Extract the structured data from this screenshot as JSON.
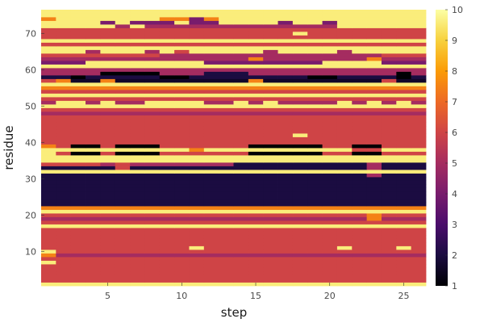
{
  "chart_data": {
    "type": "heatmap",
    "xlabel": "step",
    "ylabel": "residue",
    "x_ticks": [
      5,
      10,
      15,
      20,
      25
    ],
    "y_ticks": [
      10,
      20,
      30,
      40,
      50,
      60,
      70
    ],
    "xlim": [
      0.5,
      26.5
    ],
    "ylim": [
      0.5,
      76.5
    ],
    "colorbar": {
      "min": 1,
      "max": 10,
      "ticks": [
        1,
        2,
        3,
        4,
        5,
        6,
        7,
        8,
        9,
        10
      ],
      "colormap": "inferno",
      "stops": [
        "#000004",
        "#1b0c41",
        "#4a0c6b",
        "#781c6d",
        "#a52c60",
        "#cf4446",
        "#ed6925",
        "#fb9b06",
        "#f7d13d",
        "#fcffa4"
      ]
    },
    "grid": false,
    "steps": 26,
    "default_row_value": 6,
    "rows": [
      {
        "y": 1,
        "v": 9.6
      },
      {
        "y": 2,
        "v": 6
      },
      {
        "y": 3,
        "v": 6
      },
      {
        "y": 4,
        "v": 6
      },
      {
        "y": 5,
        "v": 6
      },
      {
        "y": 6,
        "v": 6
      },
      {
        "y": 7,
        "v": 6,
        "o": [
          [
            1,
            9.6
          ]
        ]
      },
      {
        "y": 8,
        "v": 6
      },
      {
        "y": 9,
        "v": 5,
        "o": [
          [
            1,
            7.5
          ]
        ]
      },
      {
        "y": 10,
        "v": 6,
        "o": [
          [
            1,
            9.6
          ]
        ]
      },
      {
        "y": 11,
        "v": 6,
        "o": [
          [
            11,
            9.6
          ],
          [
            21,
            9.6
          ],
          [
            25,
            9.6
          ]
        ]
      },
      {
        "y": 12,
        "v": 6
      },
      {
        "y": 13,
        "v": 6
      },
      {
        "y": 14,
        "v": 6
      },
      {
        "y": 15,
        "v": 6
      },
      {
        "y": 16,
        "v": 6
      },
      {
        "y": 17,
        "v": 9.6
      },
      {
        "y": 18,
        "v": 6
      },
      {
        "y": 19,
        "v": 5,
        "o": [
          [
            23,
            7.5
          ]
        ]
      },
      {
        "y": 20,
        "v": 6,
        "o": [
          [
            23,
            7.5
          ]
        ]
      },
      {
        "y": 21,
        "v": 9.6
      },
      {
        "y": 22,
        "v": 7.5
      },
      {
        "y": 23,
        "v": 2
      },
      {
        "y": 24,
        "v": 2
      },
      {
        "y": 25,
        "v": 2
      },
      {
        "y": 26,
        "v": 2
      },
      {
        "y": 27,
        "v": 2
      },
      {
        "y": 28,
        "v": 2
      },
      {
        "y": 29,
        "v": 2
      },
      {
        "y": 30,
        "v": 2
      },
      {
        "y": 31,
        "v": 2,
        "o": [
          [
            23,
            5
          ]
        ]
      },
      {
        "y": 32,
        "v": 9.6
      },
      {
        "y": 33,
        "v": 2,
        "o": [
          [
            6,
            6
          ],
          [
            23,
            5
          ]
        ]
      },
      {
        "y": 34,
        "v": 2,
        "o": [
          [
            1,
            6
          ],
          [
            2,
            6
          ],
          [
            3,
            6
          ],
          [
            4,
            6
          ],
          [
            5,
            5
          ],
          [
            6,
            6
          ],
          [
            7,
            5
          ],
          [
            8,
            5
          ],
          [
            9,
            5
          ],
          [
            10,
            5
          ],
          [
            11,
            5
          ],
          [
            12,
            5
          ],
          [
            13,
            5
          ],
          [
            23,
            5
          ]
        ]
      },
      {
        "y": 35,
        "v": 9.6
      },
      {
        "y": 36,
        "v": 9.6
      },
      {
        "y": 37,
        "v": 6,
        "o": [
          [
            1,
            9.6
          ],
          [
            3,
            1
          ],
          [
            4,
            1
          ],
          [
            6,
            1
          ],
          [
            7,
            1
          ],
          [
            8,
            1
          ],
          [
            15,
            1
          ],
          [
            16,
            1
          ],
          [
            17,
            1
          ],
          [
            18,
            1
          ],
          [
            19,
            1
          ],
          [
            22,
            1
          ],
          [
            23,
            1
          ]
        ]
      },
      {
        "y": 38,
        "v": 9.6,
        "o": [
          [
            11,
            7.5
          ],
          [
            22,
            6
          ],
          [
            23,
            6
          ]
        ]
      },
      {
        "y": 39,
        "v": 6,
        "o": [
          [
            1,
            7.5
          ],
          [
            3,
            1
          ],
          [
            4,
            1
          ],
          [
            6,
            1
          ],
          [
            7,
            1
          ],
          [
            8,
            1
          ],
          [
            15,
            1
          ],
          [
            16,
            1
          ],
          [
            17,
            1
          ],
          [
            18,
            1
          ],
          [
            19,
            1
          ],
          [
            22,
            1
          ],
          [
            23,
            1
          ]
        ]
      },
      {
        "y": 40,
        "v": 6
      },
      {
        "y": 41,
        "v": 6
      },
      {
        "y": 42,
        "v": 6,
        "o": [
          [
            18,
            9.6
          ]
        ]
      },
      {
        "y": 43,
        "v": 6
      },
      {
        "y": 44,
        "v": 6
      },
      {
        "y": 45,
        "v": 6
      },
      {
        "y": 46,
        "v": 6
      },
      {
        "y": 47,
        "v": 6
      },
      {
        "y": 48,
        "v": 5
      },
      {
        "y": 49,
        "v": 6
      },
      {
        "y": 50,
        "v": 9.6
      },
      {
        "y": 51,
        "v": 5,
        "o": [
          [
            2,
            9.6
          ],
          [
            3,
            9.6
          ],
          [
            5,
            9.6
          ],
          [
            8,
            9.6
          ],
          [
            9,
            9.6
          ],
          [
            10,
            9.6
          ],
          [
            11,
            9.6
          ],
          [
            14,
            9.6
          ],
          [
            16,
            9.6
          ],
          [
            21,
            9.6
          ],
          [
            23,
            9.6
          ],
          [
            25,
            9.6
          ]
        ]
      },
      {
        "y": 52,
        "v": 6
      },
      {
        "y": 53,
        "v": 9.6
      },
      {
        "y": 54,
        "v": 6
      },
      {
        "y": 55,
        "v": 7.5
      },
      {
        "y": 56,
        "v": 9.6
      },
      {
        "y": 57,
        "v": 1.6,
        "o": [
          [
            1,
            6
          ],
          [
            2,
            7.5
          ],
          [
            5,
            7.5
          ],
          [
            15,
            7.5
          ],
          [
            24,
            6
          ]
        ]
      },
      {
        "y": 58,
        "v": 2,
        "o": [
          [
            3,
            1
          ],
          [
            9,
            1
          ],
          [
            10,
            1
          ],
          [
            19,
            1
          ],
          [
            20,
            1
          ],
          [
            25,
            1
          ]
        ]
      },
      {
        "y": 59,
        "v": 5,
        "o": [
          [
            5,
            1
          ],
          [
            6,
            1
          ],
          [
            7,
            1
          ],
          [
            8,
            1
          ],
          [
            12,
            2
          ],
          [
            13,
            2
          ],
          [
            14,
            2
          ],
          [
            25,
            1
          ]
        ]
      },
      {
        "y": 60,
        "v": 5
      },
      {
        "y": 61,
        "v": 9.6
      },
      {
        "y": 62,
        "v": 4,
        "o": [
          [
            4,
            9.6
          ],
          [
            5,
            9.6
          ],
          [
            6,
            9.6
          ],
          [
            7,
            9.6
          ],
          [
            8,
            9.6
          ],
          [
            9,
            9.6
          ],
          [
            10,
            9.6
          ],
          [
            11,
            9.6
          ],
          [
            20,
            9.6
          ],
          [
            21,
            9.6
          ],
          [
            22,
            9.6
          ],
          [
            23,
            9.6
          ]
        ]
      },
      {
        "y": 63,
        "v": 5,
        "o": [
          [
            15,
            7.5
          ],
          [
            23,
            7.5
          ]
        ]
      },
      {
        "y": 64,
        "v": 6,
        "o": [
          [
            9,
            5
          ],
          [
            10,
            5
          ],
          [
            11,
            5
          ],
          [
            12,
            5
          ],
          [
            13,
            5
          ],
          [
            14,
            5
          ],
          [
            15,
            5
          ],
          [
            16,
            5
          ],
          [
            17,
            5
          ],
          [
            18,
            5
          ],
          [
            19,
            5
          ],
          [
            20,
            5
          ],
          [
            21,
            5
          ],
          [
            22,
            5
          ],
          [
            23,
            5
          ]
        ]
      },
      {
        "y": 65,
        "v": 9.6,
        "o": [
          [
            4,
            5
          ],
          [
            8,
            5
          ],
          [
            10,
            6
          ],
          [
            16,
            5
          ],
          [
            21,
            5
          ]
        ]
      },
      {
        "y": 66,
        "v": 9.6
      },
      {
        "y": 67,
        "v": 6
      },
      {
        "y": 68,
        "v": 9.6
      },
      {
        "y": 69,
        "v": 6
      },
      {
        "y": 70,
        "v": 6,
        "o": [
          [
            18,
            9.6
          ]
        ]
      },
      {
        "y": 71,
        "v": 6
      },
      {
        "y": 72,
        "v": 9.6,
        "o": [
          [
            6,
            5
          ],
          [
            8,
            5
          ],
          [
            9,
            5
          ],
          [
            10,
            5
          ],
          [
            11,
            5
          ],
          [
            12,
            5
          ],
          [
            13,
            5
          ],
          [
            14,
            5
          ],
          [
            15,
            5
          ],
          [
            16,
            5
          ],
          [
            17,
            5
          ],
          [
            18,
            5
          ],
          [
            19,
            5
          ],
          [
            20,
            5
          ]
        ]
      },
      {
        "y": 73,
        "v": 9.6,
        "o": [
          [
            5,
            4
          ],
          [
            7,
            4
          ],
          [
            8,
            4
          ],
          [
            9,
            4
          ],
          [
            11,
            4
          ],
          [
            12,
            4
          ],
          [
            17,
            4
          ],
          [
            20,
            4
          ]
        ]
      },
      {
        "y": 74,
        "v": 9.6,
        "o": [
          [
            1,
            7.5
          ],
          [
            9,
            7.5
          ],
          [
            10,
            7.5
          ],
          [
            11,
            4
          ],
          [
            12,
            7.5
          ]
        ]
      },
      {
        "y": 75,
        "v": 9.6
      },
      {
        "y": 76,
        "v": 9.6
      }
    ]
  }
}
